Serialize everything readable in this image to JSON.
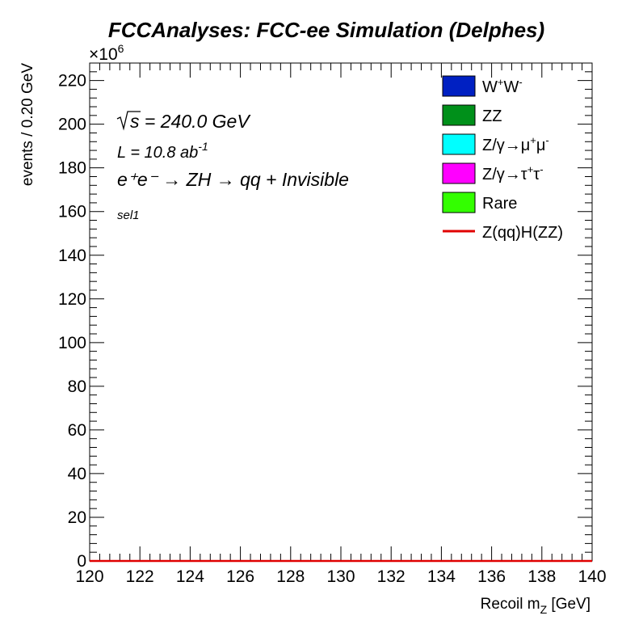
{
  "chart_data": {
    "type": "bar",
    "title": "FCCAnalyses: FCC-ee Simulation (Delphes)",
    "xlabel_main": "Recoil m",
    "xlabel_sub": "Z",
    "xlabel_unit": " [GeV]",
    "ylabel": "events / 0.20 GeV",
    "y_multiplier_base": "×10",
    "y_multiplier_exp": "6",
    "xlim": [
      120,
      140
    ],
    "ylim": [
      0,
      228
    ],
    "xticks": [
      "120",
      "122",
      "124",
      "126",
      "128",
      "130",
      "132",
      "134",
      "136",
      "138",
      "140"
    ],
    "yticks": [
      "0",
      "20",
      "40",
      "60",
      "80",
      "100",
      "120",
      "140",
      "160",
      "180",
      "200",
      "220"
    ],
    "grid": false,
    "legend_placement": "top-right",
    "legend": [
      {
        "base": "W",
        "sup1": "+",
        "mid": "W",
        "sup2": "-",
        "color": "#0020c2",
        "kind": "box"
      },
      {
        "base": "ZZ",
        "sup1": "",
        "mid": "",
        "sup2": "",
        "color": "#00901a",
        "kind": "box"
      },
      {
        "base": "Z/γ→μ",
        "sup1": "+",
        "mid": "μ",
        "sup2": "-",
        "color": "#00ffff",
        "kind": "box"
      },
      {
        "base": "Z/γ→τ",
        "sup1": "+",
        "mid": "τ",
        "sup2": "-",
        "color": "#ff00ff",
        "kind": "box"
      },
      {
        "base": "Rare",
        "sup1": "",
        "mid": "",
        "sup2": "",
        "color": "#33ff00",
        "kind": "box"
      },
      {
        "base": "Z(qq)H(ZZ)",
        "sup1": "",
        "mid": "",
        "sup2": "",
        "color": "#e00000",
        "kind": "line"
      }
    ],
    "annotations": {
      "sqrt_s": "s = 240.0 GeV",
      "lumi_main": "L = 10.8 ab",
      "lumi_exp": "-1",
      "process": "e⁺e⁻ → ZH → qq + Invisible",
      "selection": "sel1"
    },
    "series": [
      {
        "name": "Z(qq)H(ZZ)",
        "x": [
          120,
          140
        ],
        "values": [
          0,
          0
        ]
      }
    ]
  }
}
